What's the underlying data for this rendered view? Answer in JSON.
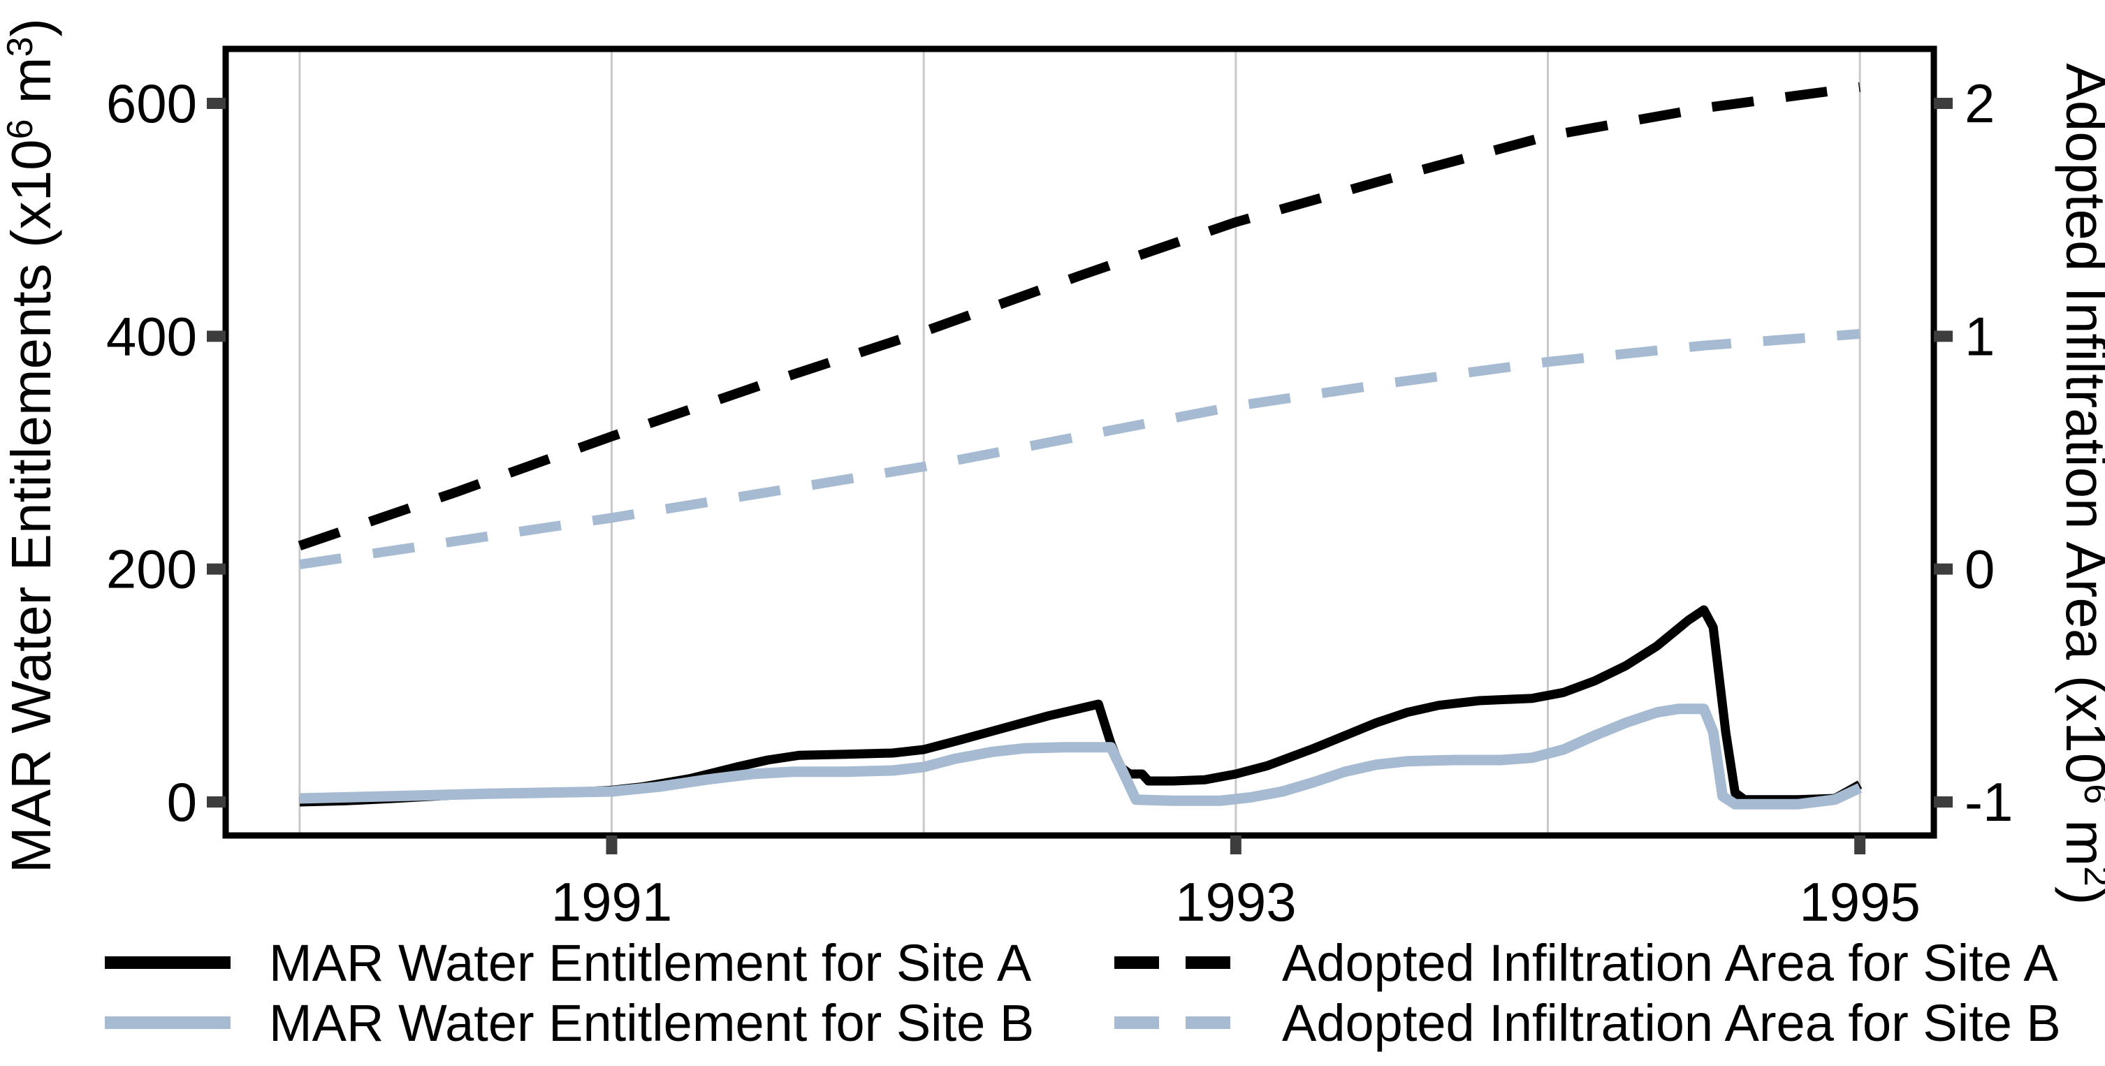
{
  "figure": {
    "colors": {
      "site_a": "#000000",
      "site_b": "#a6bad1",
      "gridline": "#c9c9c9",
      "tick_mark": "#3d3d3d",
      "border": "#000000",
      "background": "#ffffff"
    },
    "left_axis": {
      "title": "MAR Water Entitlements (x10⁶ m³)",
      "title_parts": [
        {
          "t": "MAR Water Entitlements (x10"
        },
        {
          "t": "6",
          "sup": true
        },
        {
          "t": " m"
        },
        {
          "t": "3",
          "sup": true
        },
        {
          "t": ")"
        }
      ],
      "ticks": [
        {
          "value": 600,
          "label": "600"
        },
        {
          "value": 400,
          "label": "400"
        },
        {
          "value": 200,
          "label": "200"
        },
        {
          "value": 0,
          "label": "0"
        }
      ]
    },
    "right_axis": {
      "title": "Adopted Infiltration Area (x10⁶ m²)",
      "title_parts": [
        {
          "t": "Adopted Infiltration Area (x10"
        },
        {
          "t": "6",
          "sup": true
        },
        {
          "t": " m"
        },
        {
          "t": "2",
          "sup": true
        },
        {
          "t": ")"
        }
      ],
      "ticks": [
        {
          "value": 2,
          "label": "2"
        },
        {
          "value": 1,
          "label": "1"
        },
        {
          "value": 0,
          "label": "0"
        },
        {
          "value": -1,
          "label": "-1"
        }
      ]
    },
    "x_axis": {
      "gridline_years": [
        1990,
        1991,
        1992,
        1993,
        1994,
        1995
      ],
      "ticks": [
        {
          "year": 1991,
          "label": "1991"
        },
        {
          "year": 1993,
          "label": "1993"
        },
        {
          "year": 1995,
          "label": "1995"
        }
      ]
    },
    "legend": {
      "items": [
        {
          "label": "MAR Water Entitlement for Site A",
          "color_key": "site_a",
          "style": "solid"
        },
        {
          "label": "MAR Water Entitlement for Site B",
          "color_key": "site_b",
          "style": "solid"
        },
        {
          "label": "Adopted Infiltration Area for Site A",
          "color_key": "site_a",
          "style": "dashed"
        },
        {
          "label": "Adopted Infiltration Area for Site B",
          "color_key": "site_b",
          "style": "dashed"
        }
      ]
    }
  },
  "chart_data": {
    "type": "line",
    "title": "",
    "xlabel": "",
    "ylabel_left": "MAR Water Entitlements (x10⁶ m³)",
    "ylabel_right": "Adopted Infiltration Area (x10⁶ m²)",
    "x_range_years": [
      1989.763,
      1995.237
    ],
    "left_ylim": [
      -28.8,
      646.8
    ],
    "right_ylim": [
      -1.144,
      2.234
    ],
    "grid": "vertical-only",
    "legend_position": "bottom",
    "series": [
      {
        "name": "Adopted Infiltration Area for Site A",
        "axis": "right",
        "style": "dashed",
        "color_key": "site_a",
        "width": 14,
        "points": [
          [
            1990.0,
            0.1
          ],
          [
            1990.5,
            0.33
          ],
          [
            1991.0,
            0.57
          ],
          [
            1991.5,
            0.8
          ],
          [
            1992.0,
            1.02
          ],
          [
            1992.5,
            1.26
          ],
          [
            1993.0,
            1.49
          ],
          [
            1993.5,
            1.68
          ],
          [
            1994.0,
            1.86
          ],
          [
            1994.5,
            1.98
          ],
          [
            1995.0,
            2.07
          ]
        ]
      },
      {
        "name": "Adopted Infiltration Area for Site B",
        "axis": "right",
        "style": "dashed",
        "color_key": "site_b",
        "width": 14,
        "points": [
          [
            1990.0,
            0.02
          ],
          [
            1990.5,
            0.12
          ],
          [
            1991.0,
            0.22
          ],
          [
            1991.5,
            0.33
          ],
          [
            1992.0,
            0.44
          ],
          [
            1992.5,
            0.57
          ],
          [
            1993.0,
            0.7
          ],
          [
            1993.5,
            0.8
          ],
          [
            1994.0,
            0.89
          ],
          [
            1994.5,
            0.96
          ],
          [
            1995.0,
            1.01
          ]
        ]
      },
      {
        "name": "MAR Water Entitlement for Site A",
        "axis": "left",
        "style": "solid",
        "color_key": "site_a",
        "width": 13,
        "points": [
          [
            1990.0,
            0
          ],
          [
            1990.15,
            1
          ],
          [
            1990.3,
            3
          ],
          [
            1990.5,
            6
          ],
          [
            1990.7,
            8
          ],
          [
            1990.85,
            8
          ],
          [
            1991.0,
            10
          ],
          [
            1991.1,
            13
          ],
          [
            1991.25,
            20
          ],
          [
            1991.4,
            30
          ],
          [
            1991.5,
            36
          ],
          [
            1991.6,
            40
          ],
          [
            1991.75,
            41
          ],
          [
            1991.9,
            42
          ],
          [
            1992.0,
            45
          ],
          [
            1992.1,
            52
          ],
          [
            1992.25,
            63
          ],
          [
            1992.4,
            74
          ],
          [
            1992.56,
            84
          ],
          [
            1992.6,
            50
          ],
          [
            1992.63,
            30
          ],
          [
            1992.66,
            24
          ],
          [
            1992.7,
            24
          ],
          [
            1992.72,
            18
          ],
          [
            1992.8,
            18
          ],
          [
            1992.9,
            19
          ],
          [
            1993.0,
            24
          ],
          [
            1993.1,
            31
          ],
          [
            1993.25,
            46
          ],
          [
            1993.35,
            57
          ],
          [
            1993.45,
            68
          ],
          [
            1993.55,
            77
          ],
          [
            1993.65,
            83
          ],
          [
            1993.78,
            87
          ],
          [
            1993.95,
            89
          ],
          [
            1994.05,
            94
          ],
          [
            1994.15,
            104
          ],
          [
            1994.25,
            117
          ],
          [
            1994.35,
            134
          ],
          [
            1994.45,
            156
          ],
          [
            1994.5,
            165
          ],
          [
            1994.53,
            150
          ],
          [
            1994.57,
            60
          ],
          [
            1994.6,
            8
          ],
          [
            1994.63,
            2
          ],
          [
            1994.8,
            2
          ],
          [
            1994.92,
            3
          ],
          [
            1995.0,
            15
          ]
        ]
      },
      {
        "name": "MAR Water Entitlement for Site B",
        "axis": "left",
        "style": "solid",
        "color_key": "site_b",
        "width": 15,
        "points": [
          [
            1990.0,
            3
          ],
          [
            1990.3,
            5
          ],
          [
            1990.6,
            7
          ],
          [
            1991.0,
            9
          ],
          [
            1991.15,
            13
          ],
          [
            1991.3,
            19
          ],
          [
            1991.45,
            24
          ],
          [
            1991.58,
            26
          ],
          [
            1991.75,
            26
          ],
          [
            1991.9,
            27
          ],
          [
            1992.0,
            30
          ],
          [
            1992.1,
            37
          ],
          [
            1992.22,
            43
          ],
          [
            1992.32,
            46
          ],
          [
            1992.45,
            47
          ],
          [
            1992.6,
            47
          ],
          [
            1992.64,
            25
          ],
          [
            1992.68,
            2
          ],
          [
            1992.8,
            1
          ],
          [
            1992.95,
            1
          ],
          [
            1993.05,
            4
          ],
          [
            1993.15,
            9
          ],
          [
            1993.25,
            17
          ],
          [
            1993.35,
            26
          ],
          [
            1993.45,
            32
          ],
          [
            1993.55,
            35
          ],
          [
            1993.7,
            36
          ],
          [
            1993.85,
            36
          ],
          [
            1993.95,
            38
          ],
          [
            1994.05,
            45
          ],
          [
            1994.15,
            57
          ],
          [
            1994.25,
            68
          ],
          [
            1994.35,
            77
          ],
          [
            1994.42,
            80
          ],
          [
            1994.5,
            80
          ],
          [
            1994.53,
            60
          ],
          [
            1994.56,
            5
          ],
          [
            1994.6,
            -2
          ],
          [
            1994.8,
            -2
          ],
          [
            1994.92,
            2
          ],
          [
            1995.0,
            12
          ]
        ]
      }
    ]
  }
}
